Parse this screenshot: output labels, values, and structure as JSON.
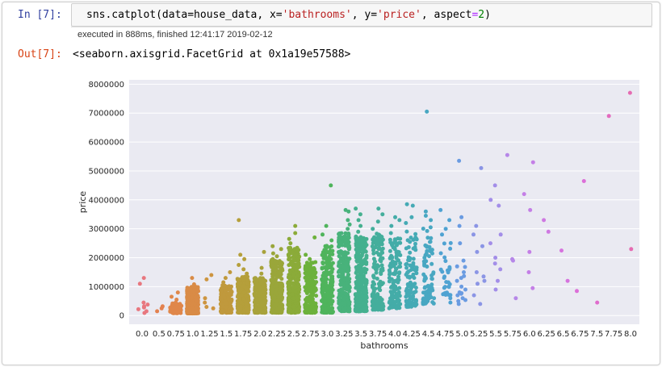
{
  "cell": {
    "in_prompt": "In [7]:",
    "code": {
      "prefix": "sns.catplot(data=house_data, x=",
      "x_value": "'bathrooms'",
      "mid": ", y=",
      "y_value": "'price'",
      "aspect_prefix": ", aspect",
      "eq": "=",
      "aspect_value": "2",
      "suffix": ")"
    },
    "execution_info": "executed in 888ms, finished 12:41:17 2019-02-12",
    "out_prompt": "Out[7]:",
    "output_text": "<seaborn.axisgrid.FacetGrid at 0x1a19e57588>"
  },
  "chart_data": {
    "type": "scatter",
    "subtype": "strip",
    "xlabel": "bathrooms",
    "ylabel": "price",
    "categories": [
      "0.0",
      "0.5",
      "0.75",
      "1.0",
      "1.25",
      "1.5",
      "1.75",
      "2.0",
      "2.25",
      "2.5",
      "2.75",
      "3.0",
      "3.25",
      "3.5",
      "3.75",
      "4.0",
      "4.25",
      "4.5",
      "4.75",
      "5.0",
      "5.25",
      "5.5",
      "5.75",
      "6.0",
      "6.25",
      "6.5",
      "6.75",
      "7.5",
      "7.75",
      "8.0"
    ],
    "y_ticks": [
      0,
      1000000,
      2000000,
      3000000,
      4000000,
      5000000,
      6000000,
      7000000,
      8000000
    ],
    "y_tick_labels": [
      "0",
      "1000000",
      "2000000",
      "3000000",
      "4000000",
      "5000000",
      "6000000",
      "7000000",
      "8000000"
    ],
    "ylim": [
      -300000,
      8150000
    ],
    "grid": true,
    "background": "#eaeaf2",
    "series": [
      {
        "category": "0.0",
        "color": "#e8777f",
        "values": [
          1300000,
          1100000,
          450000,
          380000,
          320000,
          280000,
          220000,
          150000,
          90000
        ],
        "dense_range": [
          75000,
          450000
        ],
        "dense_count": 0
      },
      {
        "category": "0.5",
        "color": "#e3814f",
        "values": [
          320000,
          250000,
          150000
        ],
        "dense_range": [
          150000,
          320000
        ],
        "dense_count": 0
      },
      {
        "category": "0.75",
        "color": "#e0874a",
        "values": [
          800000,
          650000,
          550000,
          420000
        ],
        "dense_range": [
          80000,
          450000
        ],
        "dense_count": 60
      },
      {
        "category": "1.0",
        "color": "#d98b46",
        "values": [
          1300000,
          1080000
        ],
        "dense_range": [
          75000,
          1000000
        ],
        "dense_count": 450
      },
      {
        "category": "1.25",
        "color": "#cd9540",
        "values": [
          1400000,
          1250000,
          600000,
          450000,
          300000,
          250000
        ],
        "dense_range": [
          250000,
          600000
        ],
        "dense_count": 0
      },
      {
        "category": "1.5",
        "color": "#c0993d",
        "values": [
          1500000,
          1300000,
          1150000
        ],
        "dense_range": [
          100000,
          1050000
        ],
        "dense_count": 180
      },
      {
        "category": "1.75",
        "color": "#b59f3b",
        "values": [
          3300000,
          2100000,
          1950000,
          1750000,
          1600000,
          1450000
        ],
        "dense_range": [
          100000,
          1350000
        ],
        "dense_count": 300
      },
      {
        "category": "2.0",
        "color": "#a8a23b",
        "values": [
          2200000,
          1650000,
          1450000
        ],
        "dense_range": [
          100000,
          1300000
        ],
        "dense_count": 260
      },
      {
        "category": "2.25",
        "color": "#9aa63a",
        "values": [
          2400000,
          2300000,
          2150000,
          2050000
        ],
        "dense_range": [
          100000,
          1950000
        ],
        "dense_count": 300
      },
      {
        "category": "2.5",
        "color": "#8bab39",
        "values": [
          3100000,
          2850000,
          2650000,
          2500000
        ],
        "dense_range": [
          100000,
          2350000
        ],
        "dense_count": 360
      },
      {
        "category": "2.75",
        "color": "#6cb13c",
        "values": [
          2700000,
          2100000,
          1950000
        ],
        "dense_range": [
          100000,
          1850000
        ],
        "dense_count": 180
      },
      {
        "category": "3.0",
        "color": "#4fb45c",
        "values": [
          4500000,
          3100000,
          2800000,
          2600000
        ],
        "dense_range": [
          100000,
          2450000
        ],
        "dense_count": 220
      },
      {
        "category": "3.25",
        "color": "#48b27b",
        "values": [
          3650000,
          3600000,
          3300000,
          3150000,
          3000000
        ],
        "dense_range": [
          150000,
          2850000
        ],
        "dense_count": 300
      },
      {
        "category": "3.5",
        "color": "#45b08f",
        "values": [
          3700000,
          3500000,
          3300000,
          3100000,
          2900000
        ],
        "dense_range": [
          150000,
          2750000
        ],
        "dense_count": 320
      },
      {
        "category": "3.75",
        "color": "#44ae9c",
        "values": [
          3700000,
          3500000,
          3250000,
          3000000
        ],
        "dense_range": [
          200000,
          2850000
        ],
        "dense_count": 150
      },
      {
        "category": "4.0",
        "color": "#44aca8",
        "values": [
          3400000,
          3300000,
          3100000,
          2850000
        ],
        "dense_range": [
          250000,
          2700000
        ],
        "dense_count": 140
      },
      {
        "category": "4.25",
        "color": "#45aab5",
        "values": [
          3850000,
          3800000,
          3400000,
          3200000
        ],
        "dense_range": [
          300000,
          2950000
        ],
        "dense_count": 110
      },
      {
        "category": "4.5",
        "color": "#48a7c2",
        "values": [
          7050000,
          3600000,
          3450000,
          3300000
        ],
        "dense_range": [
          400000,
          3100000
        ],
        "dense_count": 85
      },
      {
        "category": "4.75",
        "color": "#4fa2d2",
        "values": [
          3650000,
          3300000,
          3000000,
          2800000,
          600000,
          450000
        ],
        "dense_range": [
          700000,
          2600000
        ],
        "dense_count": 30
      },
      {
        "category": "5.0",
        "color": "#6a9be1",
        "values": [
          5350000,
          3400000,
          3100000,
          2500000,
          1900000,
          1700000,
          1500000,
          1300000,
          1200000,
          1000000,
          900000,
          700000,
          600000,
          500000,
          400000
        ],
        "dense_range": [
          400000,
          2000000
        ],
        "dense_count": 6
      },
      {
        "category": "5.25",
        "color": "#8b95e5",
        "values": [
          5100000,
          3100000,
          2800000,
          2400000,
          2200000,
          1500000,
          1350000,
          1200000,
          1100000,
          700000,
          400000
        ],
        "dense_range": [
          400000,
          1500000
        ],
        "dense_count": 0
      },
      {
        "category": "5.5",
        "color": "#a38ee8",
        "values": [
          4500000,
          4000000,
          3800000,
          2800000,
          2500000,
          2000000,
          1800000,
          1600000,
          1200000,
          900000
        ],
        "dense_range": [
          900000,
          2000000
        ],
        "dense_count": 0
      },
      {
        "category": "5.75",
        "color": "#b687e8",
        "values": [
          5550000,
          1950000,
          1900000,
          600000
        ],
        "dense_range": [
          600000,
          1950000
        ],
        "dense_count": 0
      },
      {
        "category": "6.0",
        "color": "#c47fe6",
        "values": [
          5300000,
          4200000,
          3650000,
          2200000,
          1500000,
          950000
        ],
        "dense_range": [
          950000,
          2200000
        ],
        "dense_count": 0
      },
      {
        "category": "6.25",
        "color": "#cf79e2",
        "values": [
          3300000,
          2900000
        ],
        "dense_range": [
          2900000,
          3300000
        ],
        "dense_count": 0
      },
      {
        "category": "6.5",
        "color": "#d673de",
        "values": [
          2250000,
          1200000
        ],
        "dense_range": [
          1200000,
          2250000
        ],
        "dense_count": 0
      },
      {
        "category": "6.75",
        "color": "#dc6fd8",
        "values": [
          4650000,
          850000
        ],
        "dense_range": [
          850000,
          4650000
        ],
        "dense_count": 0
      },
      {
        "category": "7.5",
        "color": "#e06ccd",
        "values": [
          450000
        ],
        "dense_range": [
          450000,
          450000
        ],
        "dense_count": 0
      },
      {
        "category": "7.75",
        "color": "#e36bbf",
        "values": [
          6900000
        ],
        "dense_range": [
          6900000,
          6900000
        ],
        "dense_count": 0
      },
      {
        "category": "8.0",
        "color": "#e56cb2",
        "values": [
          7700000,
          2300000
        ],
        "dense_range": [
          2300000,
          7700000
        ],
        "dense_count": 0
      }
    ]
  }
}
